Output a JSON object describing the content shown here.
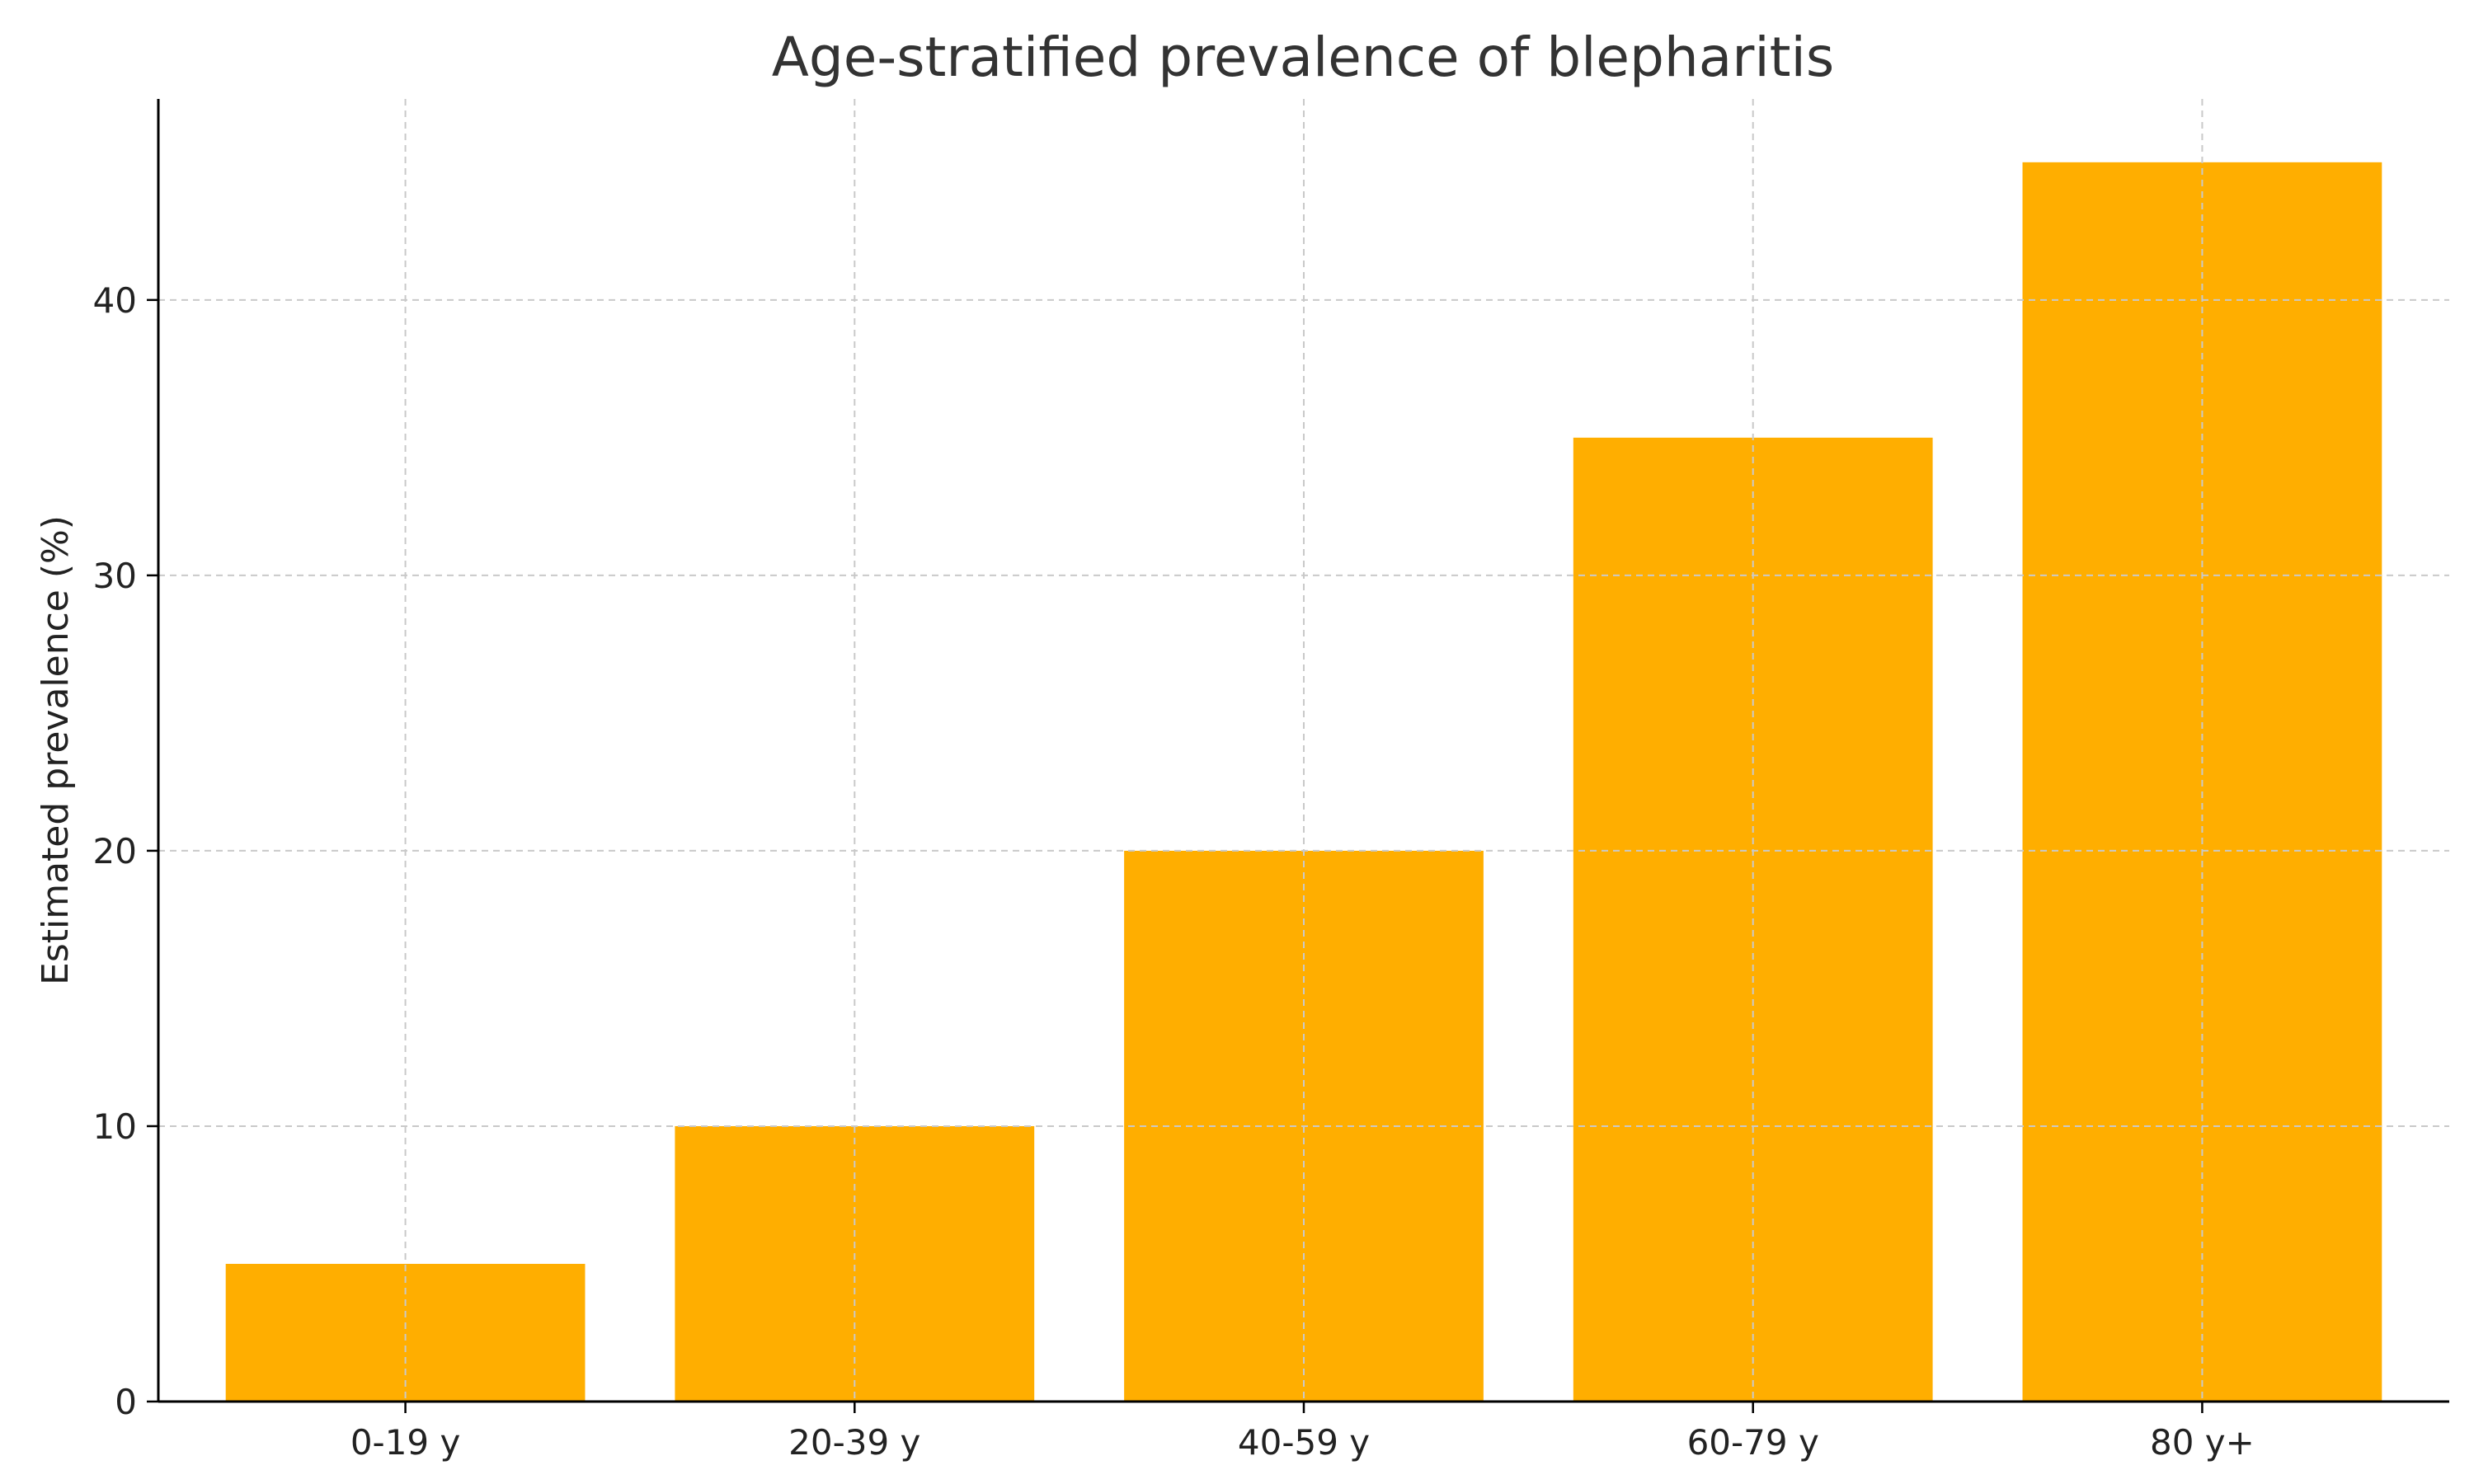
{
  "chart_data": {
    "type": "bar",
    "title": "Age-stratified prevalence of blepharitis",
    "xlabel": "",
    "ylabel": "Estimated prevalence (%)",
    "categories": [
      "0-19 y",
      "20-39 y",
      "40-59 y",
      "60-79 y",
      "80 y+"
    ],
    "values": [
      5,
      10,
      20,
      35,
      45
    ],
    "ylim": [
      0,
      47.3
    ],
    "yticks": [
      "0",
      "10",
      "20",
      "30",
      "40"
    ],
    "bar_color": "#FFAE00",
    "grid": true
  }
}
